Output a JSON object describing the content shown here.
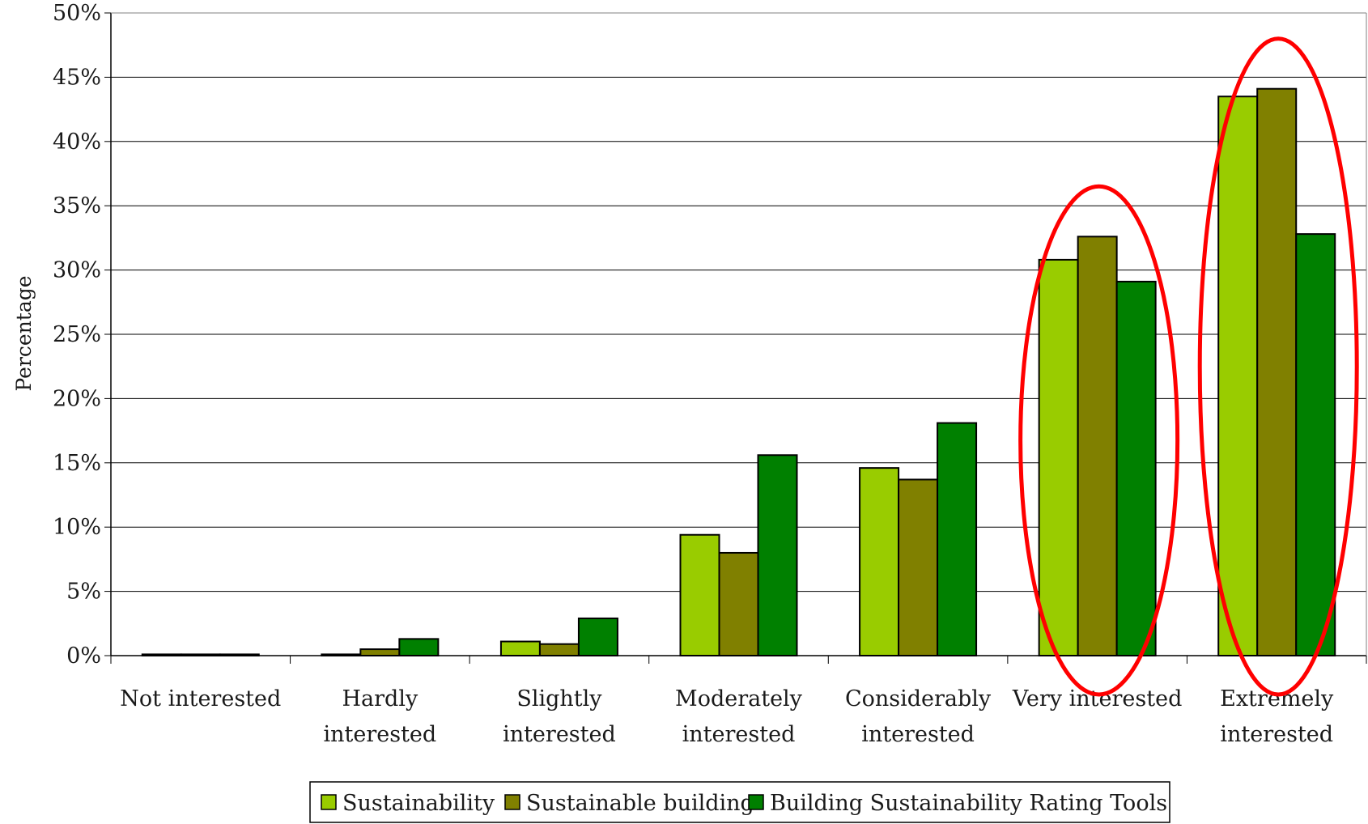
{
  "chart_data": {
    "type": "bar",
    "title": "",
    "xlabel": "",
    "ylabel": "Percentage",
    "ylim": [
      0,
      50
    ],
    "y_ticks": [
      "0%",
      "5%",
      "10%",
      "15%",
      "20%",
      "25%",
      "30%",
      "35%",
      "40%",
      "45%",
      "50%"
    ],
    "grid": "horizontal",
    "legend_position": "bottom",
    "categories": [
      [
        "Not interested"
      ],
      [
        "Hardly",
        "interested"
      ],
      [
        "Slightly",
        "interested"
      ],
      [
        "Moderately",
        "interested"
      ],
      [
        "Considerably",
        "interested"
      ],
      [
        "Very interested"
      ],
      [
        "Extremely",
        "interested"
      ]
    ],
    "series": [
      {
        "name": "Sustainability",
        "color": "#99cc00",
        "values": [
          0.1,
          0.1,
          1.1,
          9.4,
          14.6,
          30.8,
          43.5
        ]
      },
      {
        "name": "Sustainable building",
        "color": "#808000",
        "values": [
          0.1,
          0.5,
          0.9,
          8.0,
          13.7,
          32.6,
          44.1
        ]
      },
      {
        "name": "Building Sustainability Rating Tools",
        "color": "#008000",
        "values": [
          0.1,
          1.3,
          2.9,
          15.6,
          18.1,
          29.1,
          32.8
        ]
      }
    ],
    "annotations": [
      {
        "type": "ellipse",
        "color": "#ff0000",
        "highlights_category": "Very interested"
      },
      {
        "type": "ellipse",
        "color": "#ff0000",
        "highlights_category": "Extremely interested"
      }
    ]
  }
}
